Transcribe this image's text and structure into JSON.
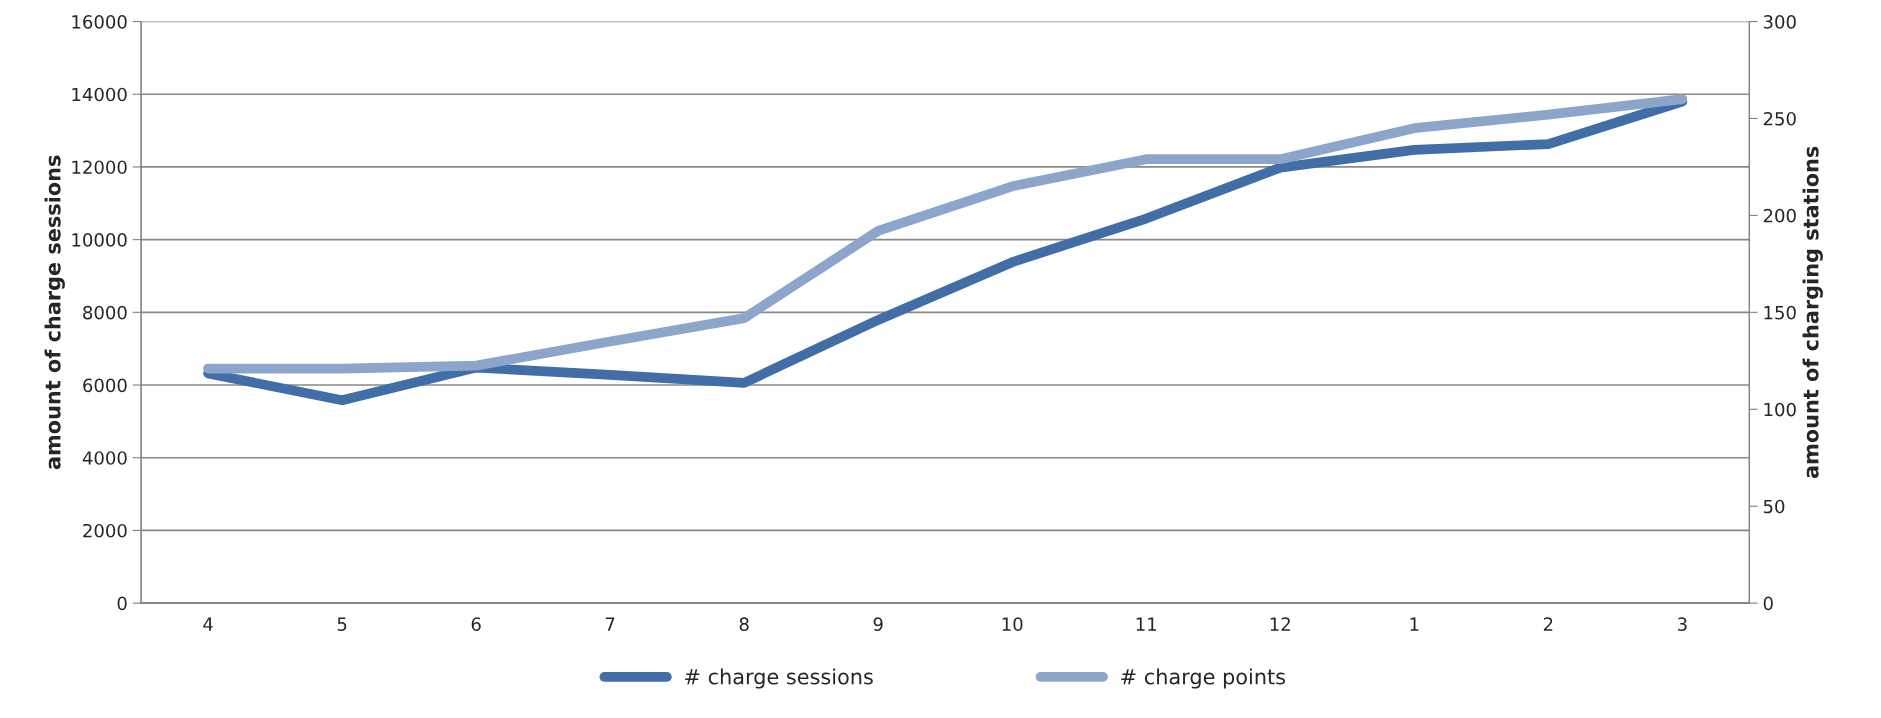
{
  "chart_data": {
    "type": "line",
    "ylabel": "amount of charge sessions",
    "y2label": "amount of charging stations",
    "categories": [
      "4",
      "5",
      "6",
      "7",
      "8",
      "9",
      "10",
      "11",
      "12",
      "1",
      "2",
      "3"
    ],
    "series": [
      {
        "name": "# charge sessions",
        "color": "#416ea6",
        "values": [
          6320,
          5580,
          6480,
          6280,
          6060,
          7790,
          9380,
          10580,
          11980,
          12470,
          12630,
          13800
        ]
      },
      {
        "name": "# charge points",
        "color": "#8ea5cb",
        "axis": "y2",
        "values": [
          121,
          121,
          122.5,
          135,
          147,
          192,
          215,
          229,
          229,
          245,
          252,
          260
        ]
      }
    ],
    "ylim": [
      0,
      16000
    ],
    "yticks": [
      0,
      2000,
      4000,
      6000,
      8000,
      10000,
      12000,
      14000,
      16000
    ],
    "y2lim": [
      0,
      300
    ],
    "y2ticks": [
      0,
      50,
      100,
      150,
      200,
      250,
      300
    ],
    "grid": "y",
    "legend": "bottom",
    "line_style": "solid",
    "marker": "none"
  }
}
